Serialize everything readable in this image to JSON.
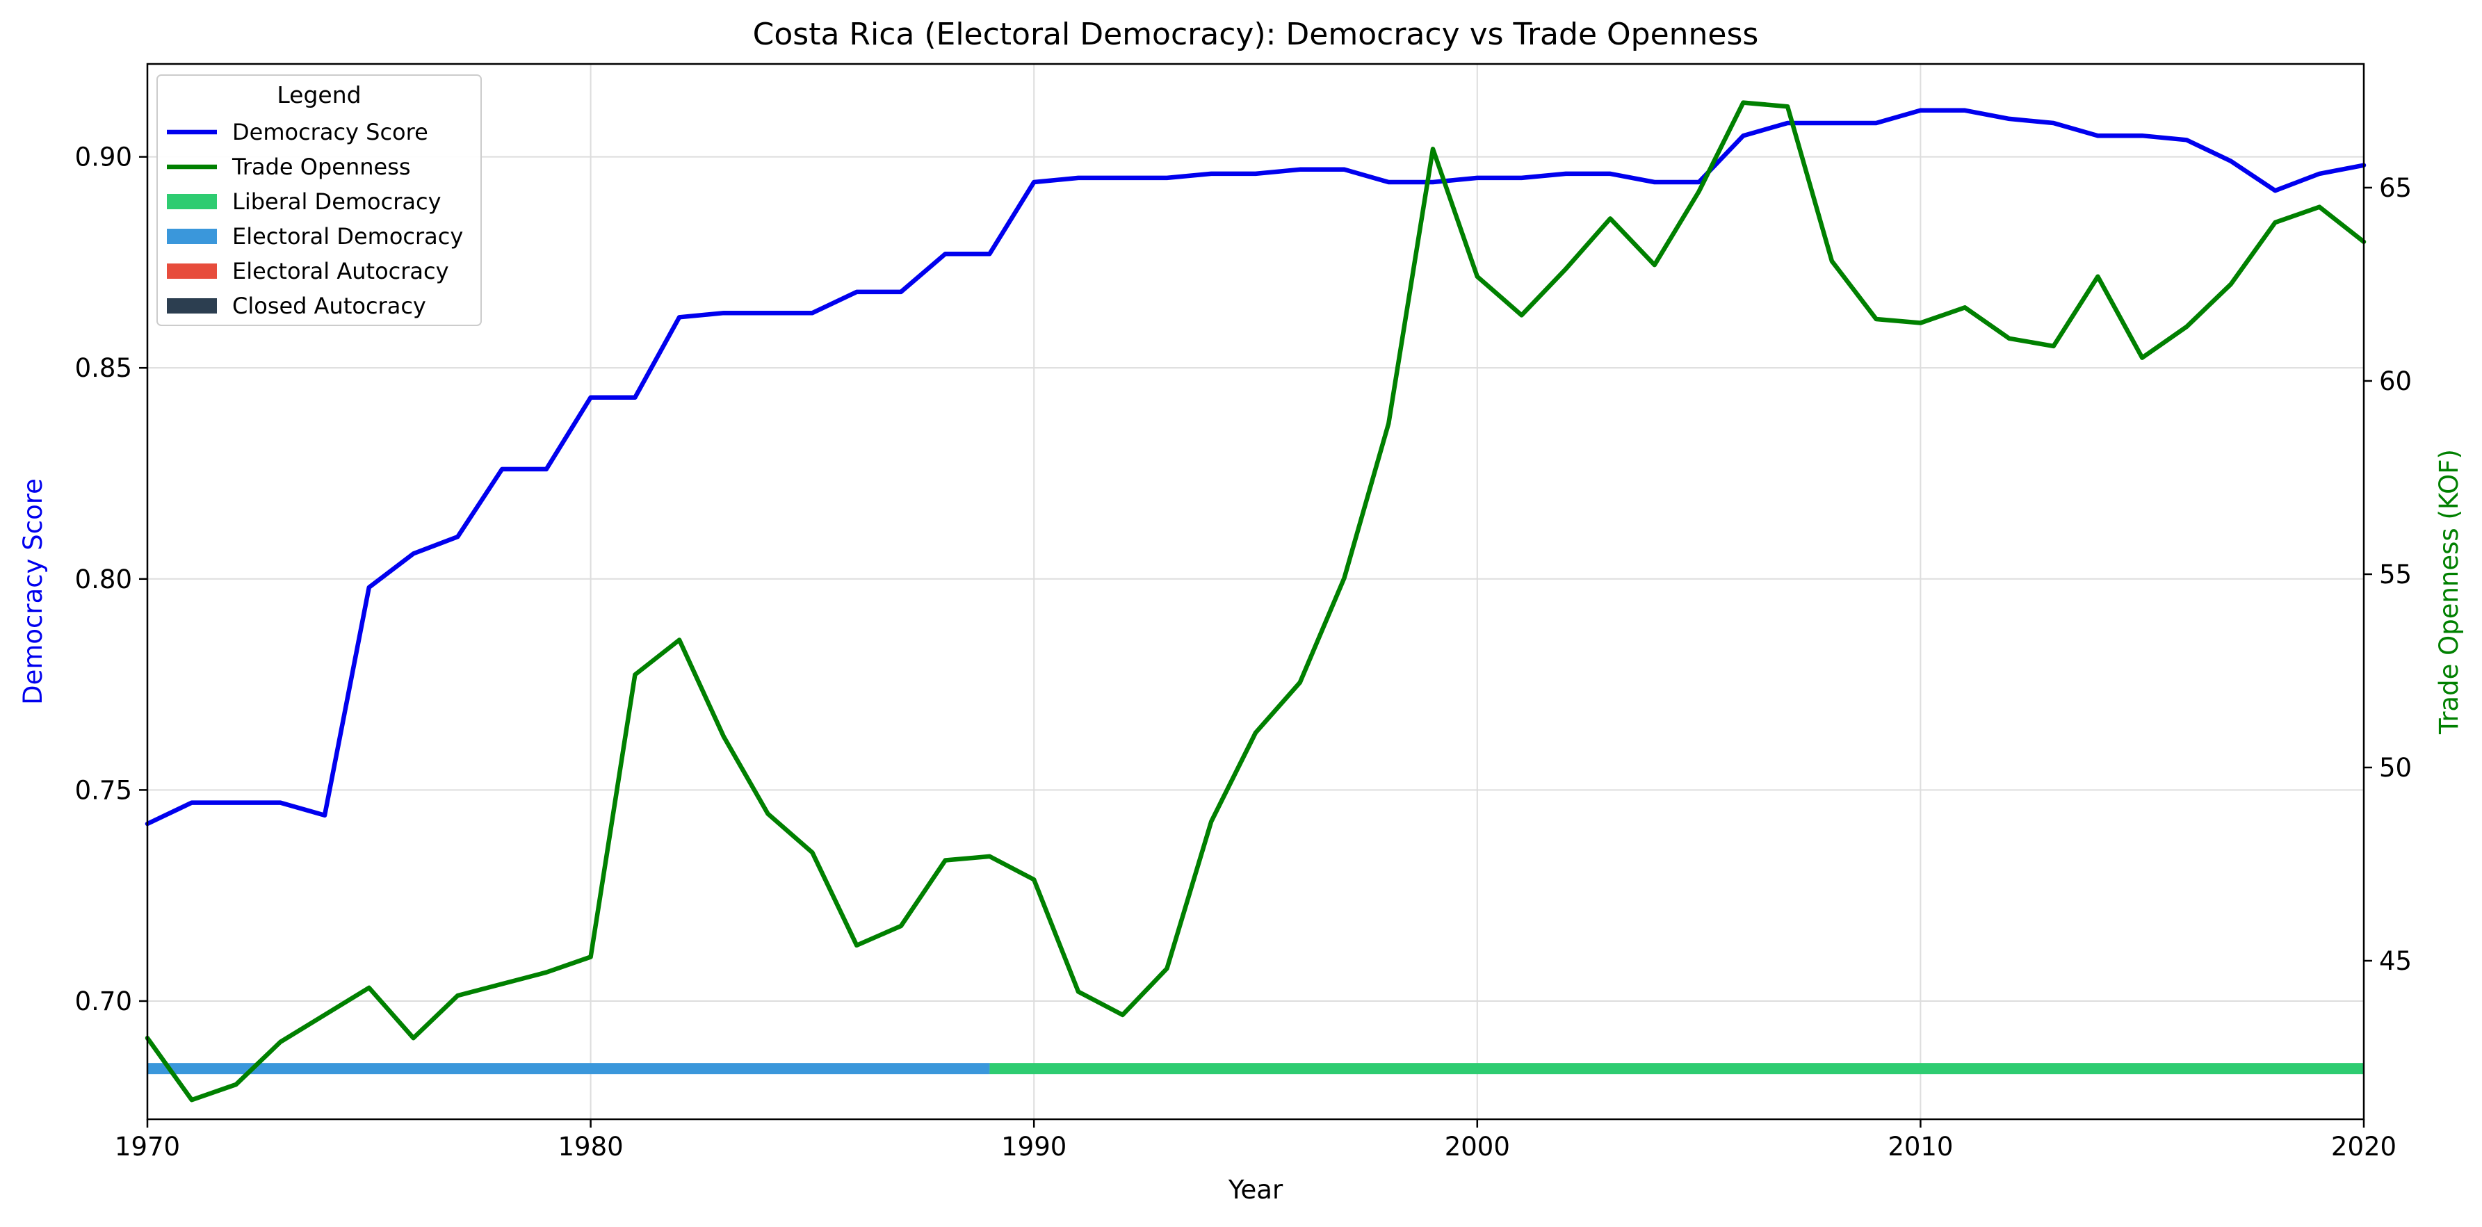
{
  "chart_data": {
    "type": "line",
    "title": "Costa Rica (Electoral Democracy): Democracy vs Trade Openness",
    "xlabel": "Year",
    "ylabel_left": "Democracy Score",
    "ylabel_right": "Trade Openness (KOF)",
    "xlim": [
      1970,
      2020
    ],
    "ylim_left": [
      0.672,
      0.922
    ],
    "ylim_right": [
      40.9,
      68.2
    ],
    "x_ticks": [
      1970,
      1980,
      1990,
      2000,
      2010,
      2020
    ],
    "y_ticks_left": [
      0.7,
      0.75,
      0.8,
      0.85,
      0.9
    ],
    "y_ticks_right": [
      45,
      50,
      55,
      60,
      65
    ],
    "grid": true,
    "legend_title": "Legend",
    "legend_position": "top-left",
    "x": [
      1970,
      1971,
      1972,
      1973,
      1974,
      1975,
      1976,
      1977,
      1978,
      1979,
      1980,
      1981,
      1982,
      1983,
      1984,
      1985,
      1986,
      1987,
      1988,
      1989,
      1990,
      1991,
      1992,
      1993,
      1994,
      1995,
      1996,
      1997,
      1998,
      1999,
      2000,
      2001,
      2002,
      2003,
      2004,
      2005,
      2006,
      2007,
      2008,
      2009,
      2010,
      2011,
      2012,
      2013,
      2014,
      2015,
      2016,
      2017,
      2018,
      2019,
      2020
    ],
    "series": [
      {
        "name": "Democracy Score",
        "axis": "left",
        "color": "#0000ee",
        "values": [
          0.742,
          0.747,
          0.747,
          0.747,
          0.744,
          0.798,
          0.806,
          0.81,
          0.826,
          0.826,
          0.843,
          0.843,
          0.862,
          0.863,
          0.863,
          0.863,
          0.868,
          0.868,
          0.877,
          0.877,
          0.894,
          0.895,
          0.895,
          0.895,
          0.896,
          0.896,
          0.897,
          0.897,
          0.894,
          0.894,
          0.895,
          0.895,
          0.896,
          0.896,
          0.894,
          0.894,
          0.905,
          0.908,
          0.908,
          0.908,
          0.911,
          0.911,
          0.909,
          0.908,
          0.905,
          0.905,
          0.904,
          0.899,
          0.892,
          0.896,
          0.898
        ]
      },
      {
        "name": "Trade Openness",
        "axis": "right",
        "color": "#008000",
        "values": [
          43.0,
          41.4,
          41.8,
          42.9,
          43.6,
          44.3,
          43.0,
          44.1,
          44.4,
          44.7,
          45.1,
          52.4,
          53.3,
          50.8,
          48.8,
          47.8,
          45.4,
          45.9,
          47.6,
          47.7,
          47.1,
          44.2,
          43.6,
          44.8,
          48.6,
          50.9,
          52.2,
          54.9,
          58.9,
          66.0,
          62.7,
          61.7,
          62.9,
          64.2,
          63.0,
          64.9,
          67.2,
          67.1,
          63.1,
          61.6,
          61.5,
          61.9,
          61.1,
          60.9,
          62.7,
          60.6,
          61.4,
          62.5,
          64.1,
          64.5,
          63.6
        ]
      }
    ],
    "regime_bar": {
      "value": 0.684,
      "segments": [
        {
          "regime": "Electoral Democracy",
          "start": 1970,
          "end": 1989,
          "color": "#3a97db"
        },
        {
          "regime": "Liberal Democracy",
          "start": 1989,
          "end": 2020,
          "color": "#2ecc71"
        }
      ]
    },
    "legend": [
      {
        "label": "Democracy Score",
        "kind": "line",
        "color": "#0000ee"
      },
      {
        "label": "Trade Openness",
        "kind": "line",
        "color": "#008000"
      },
      {
        "label": "Liberal Democracy",
        "kind": "patch",
        "color": "#2ecc71"
      },
      {
        "label": "Electoral Democracy",
        "kind": "patch",
        "color": "#3a97db"
      },
      {
        "label": "Electoral Autocracy",
        "kind": "patch",
        "color": "#e74c3c"
      },
      {
        "label": "Closed Autocracy",
        "kind": "patch",
        "color": "#2c3e50"
      }
    ]
  }
}
